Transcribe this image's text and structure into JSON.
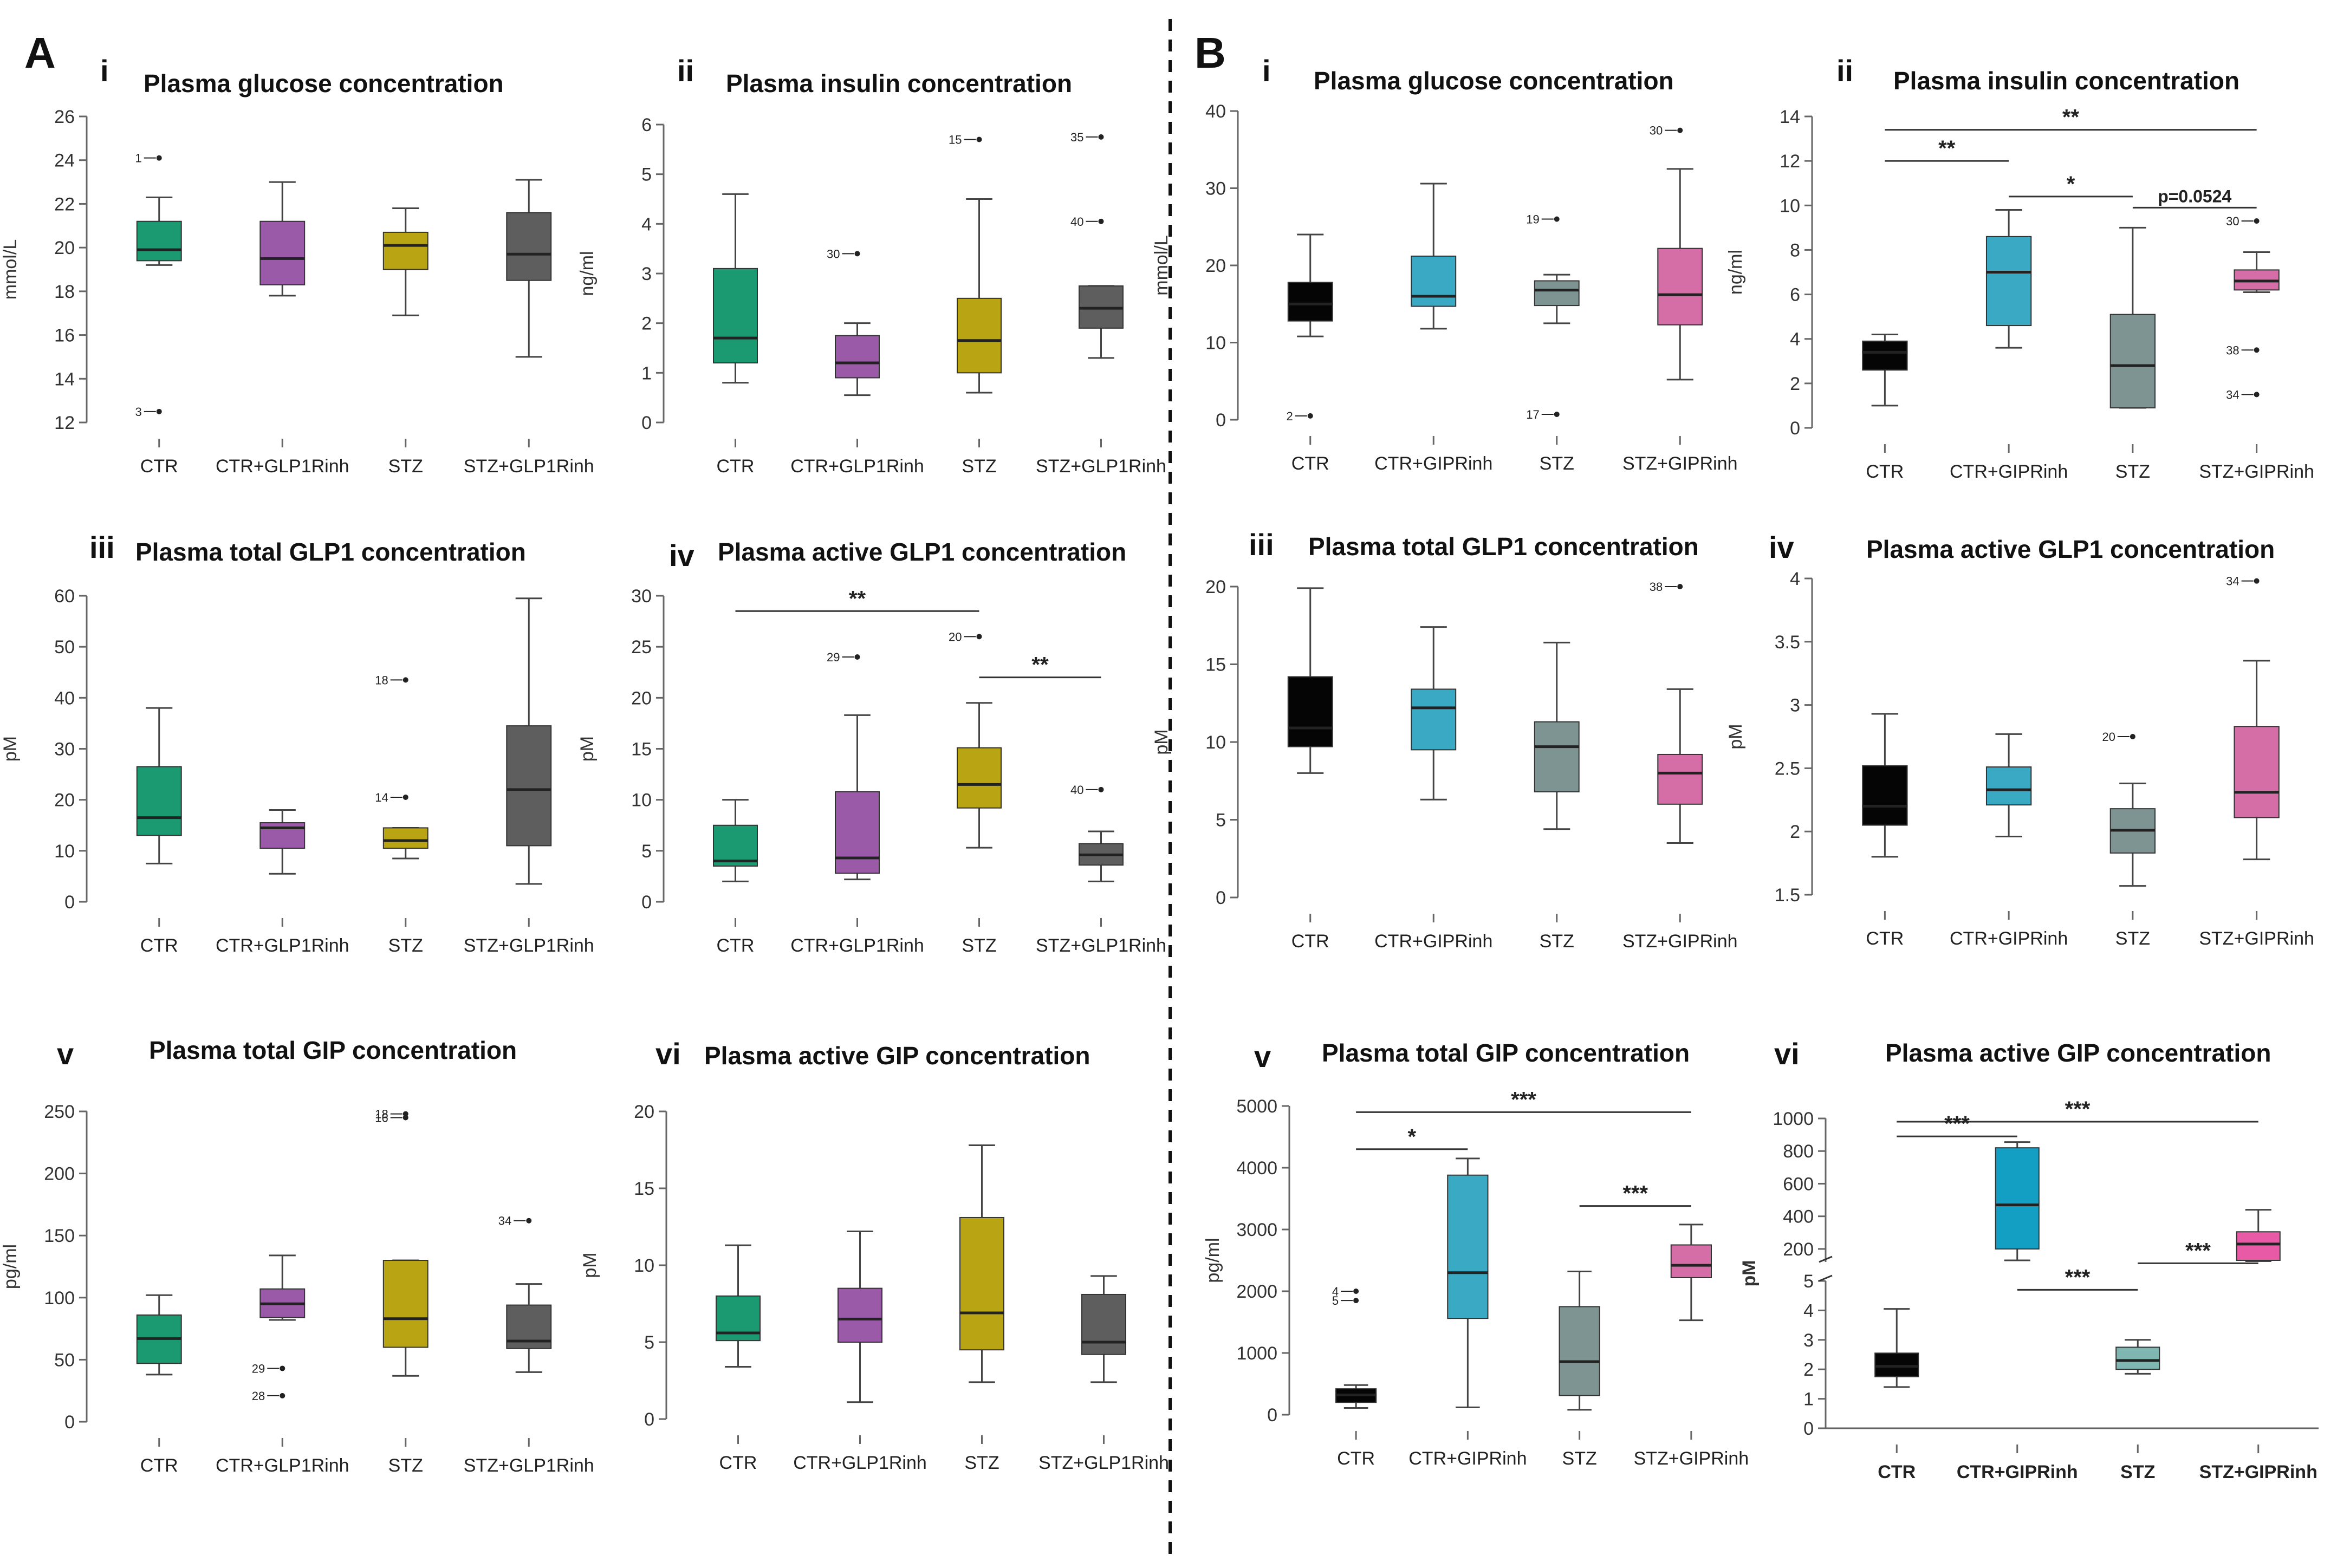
{
  "figure": {
    "panel_A_label": "A",
    "panel_B_label": "B"
  },
  "colors": {
    "A": [
      "#1b9a72",
      "#9a5aa8",
      "#b9a514",
      "#5e5e5e"
    ],
    "B": [
      "#050505",
      "#3aa9c4",
      "#7d9493",
      "#d56ea6"
    ],
    "Bvi": [
      "#050505",
      "#139fc4",
      "#7fb6b2",
      "#e85aa6"
    ]
  },
  "chart_data": [
    {
      "id": "Ai",
      "type": "box",
      "roman": "i",
      "title": "Plasma glucose concentration",
      "ylabel": "mmol/L",
      "ylim": [
        12,
        26
      ],
      "yticks": [
        12,
        14,
        16,
        18,
        20,
        22,
        24,
        26
      ],
      "categories": [
        "CTR",
        "CTR+GLP1Rinh",
        "STZ",
        "STZ+GLP1Rinh"
      ],
      "boxes": [
        {
          "min": 19.2,
          "q1": 19.4,
          "median": 19.9,
          "q3": 21.2,
          "max": 22.3
        },
        {
          "min": 17.8,
          "q1": 18.3,
          "median": 19.5,
          "q3": 21.2,
          "max": 23.0
        },
        {
          "min": 16.9,
          "q1": 19.0,
          "median": 20.1,
          "q3": 20.7,
          "max": 21.8
        },
        {
          "min": 15.0,
          "q1": 18.5,
          "median": 19.7,
          "q3": 21.6,
          "max": 23.1
        }
      ],
      "outliers": [
        {
          "box": 0,
          "y": 24.1,
          "label": "1"
        },
        {
          "box": 0,
          "y": 12.5,
          "label": "3"
        }
      ],
      "significance": []
    },
    {
      "id": "Aii",
      "type": "box",
      "roman": "ii",
      "title": "Plasma insulin concentration",
      "ylabel": "ng/ml",
      "ylim": [
        0,
        6
      ],
      "yticks": [
        0,
        1,
        2,
        3,
        4,
        5,
        6
      ],
      "categories": [
        "CTR",
        "CTR+GLP1Rinh",
        "STZ",
        "STZ+GLP1Rinh"
      ],
      "boxes": [
        {
          "min": 0.8,
          "q1": 1.2,
          "median": 1.7,
          "q3": 3.1,
          "max": 4.6
        },
        {
          "min": 0.55,
          "q1": 0.9,
          "median": 1.2,
          "q3": 1.75,
          "max": 2.0
        },
        {
          "min": 0.6,
          "q1": 1.0,
          "median": 1.65,
          "q3": 2.5,
          "max": 4.5
        },
        {
          "min": 1.3,
          "q1": 1.9,
          "median": 2.3,
          "q3": 2.75,
          "max": 2.75
        }
      ],
      "outliers": [
        {
          "box": 1,
          "y": 3.4,
          "label": "30"
        },
        {
          "box": 2,
          "y": 5.7,
          "label": "15"
        },
        {
          "box": 3,
          "y": 5.75,
          "label": "35"
        },
        {
          "box": 3,
          "y": 4.05,
          "label": "40"
        }
      ],
      "significance": []
    },
    {
      "id": "Aiii",
      "type": "box",
      "roman": "iii",
      "title": "Plasma total GLP1 concentration",
      "ylabel": "pM",
      "ylim": [
        0,
        60
      ],
      "yticks": [
        0,
        10,
        20,
        30,
        40,
        50,
        60
      ],
      "categories": [
        "CTR",
        "CTR+GLP1Rinh",
        "STZ",
        "STZ+GLP1Rinh"
      ],
      "boxes": [
        {
          "min": 7.5,
          "q1": 13.0,
          "median": 16.5,
          "q3": 26.5,
          "max": 38.0
        },
        {
          "min": 5.5,
          "q1": 10.5,
          "median": 14.5,
          "q3": 15.5,
          "max": 18.0
        },
        {
          "min": 8.5,
          "q1": 10.5,
          "median": 12.0,
          "q3": 14.5,
          "max": 14.5
        },
        {
          "min": 3.5,
          "q1": 11.0,
          "median": 22.0,
          "q3": 34.5,
          "max": 59.5
        }
      ],
      "outliers": [
        {
          "box": 2,
          "y": 43.5,
          "label": "18"
        },
        {
          "box": 2,
          "y": 20.5,
          "label": "14"
        }
      ],
      "significance": []
    },
    {
      "id": "Aiv",
      "type": "box",
      "roman": "iv",
      "title": "Plasma active GLP1 concentration",
      "ylabel": "pM",
      "ylim": [
        0,
        30
      ],
      "yticks": [
        0,
        5,
        10,
        15,
        20,
        25,
        30
      ],
      "categories": [
        "CTR",
        "CTR+GLP1Rinh",
        "STZ",
        "STZ+GLP1Rinh"
      ],
      "boxes": [
        {
          "min": 2.0,
          "q1": 3.5,
          "median": 4.0,
          "q3": 7.5,
          "max": 10.0
        },
        {
          "min": 2.2,
          "q1": 2.8,
          "median": 4.3,
          "q3": 10.8,
          "max": 18.3
        },
        {
          "min": 5.3,
          "q1": 9.2,
          "median": 11.5,
          "q3": 15.1,
          "max": 19.5
        },
        {
          "min": 2.0,
          "q1": 3.6,
          "median": 4.6,
          "q3": 5.7,
          "max": 6.9
        }
      ],
      "outliers": [
        {
          "box": 1,
          "y": 24.0,
          "label": "29"
        },
        {
          "box": 2,
          "y": 26.0,
          "label": "20"
        },
        {
          "box": 3,
          "y": 11.0,
          "label": "40"
        }
      ],
      "significance": [
        {
          "from": 0,
          "to": 2,
          "y": 28.5,
          "label": "**"
        },
        {
          "from": 2,
          "to": 3,
          "y": 22.0,
          "label": "**"
        }
      ]
    },
    {
      "id": "Av",
      "type": "box",
      "roman": "v",
      "title": "Plasma total GIP concentration",
      "ylabel": "pg/ml",
      "ylim": [
        0,
        250
      ],
      "yticks": [
        0,
        50,
        100,
        150,
        200,
        250
      ],
      "categories": [
        "CTR",
        "CTR+GLP1Rinh",
        "STZ",
        "STZ+GLP1Rinh"
      ],
      "boxes": [
        {
          "min": 38,
          "q1": 47,
          "median": 67,
          "q3": 86,
          "max": 102
        },
        {
          "min": 82,
          "q1": 84,
          "median": 95,
          "q3": 107,
          "max": 134
        },
        {
          "min": 37,
          "q1": 60,
          "median": 83,
          "q3": 130,
          "max": 130
        },
        {
          "min": 40,
          "q1": 59,
          "median": 65,
          "q3": 94,
          "max": 111
        }
      ],
      "outliers": [
        {
          "box": 1,
          "y": 43,
          "label": "29"
        },
        {
          "box": 1,
          "y": 21,
          "label": "28"
        },
        {
          "box": 2,
          "y": 248,
          "label": "18"
        },
        {
          "box": 2,
          "y": 245,
          "label": "16"
        },
        {
          "box": 3,
          "y": 162,
          "label": "34"
        }
      ],
      "significance": []
    },
    {
      "id": "Avi",
      "type": "box",
      "roman": "vi",
      "title": "Plasma active GIP concentration",
      "ylabel": "pM",
      "ylim": [
        0,
        20
      ],
      "yticks": [
        0,
        5,
        10,
        15,
        20
      ],
      "categories": [
        "CTR",
        "CTR+GLP1Rinh",
        "STZ",
        "STZ+GLP1Rinh"
      ],
      "boxes": [
        {
          "min": 3.4,
          "q1": 5.1,
          "median": 5.6,
          "q3": 8.0,
          "max": 11.3
        },
        {
          "min": 1.1,
          "q1": 5.0,
          "median": 6.5,
          "q3": 8.5,
          "max": 12.2
        },
        {
          "min": 2.4,
          "q1": 4.5,
          "median": 6.9,
          "q3": 13.1,
          "max": 17.8
        },
        {
          "min": 2.4,
          "q1": 4.2,
          "median": 5.0,
          "q3": 8.1,
          "max": 9.3
        }
      ],
      "outliers": [],
      "significance": []
    },
    {
      "id": "Bi",
      "type": "box",
      "roman": "i",
      "title": "Plasma glucose concentration",
      "ylabel": "mmol/L",
      "ylim": [
        0,
        40
      ],
      "yticks": [
        0,
        10,
        20,
        30,
        40
      ],
      "categories": [
        "CTR",
        "CTR+GIPRinh",
        "STZ",
        "STZ+GIPRinh"
      ],
      "boxes": [
        {
          "min": 10.8,
          "q1": 12.8,
          "median": 15.0,
          "q3": 17.8,
          "max": 24.0
        },
        {
          "min": 11.8,
          "q1": 14.7,
          "median": 16.0,
          "q3": 21.2,
          "max": 30.6
        },
        {
          "min": 12.5,
          "q1": 14.8,
          "median": 16.8,
          "q3": 18.0,
          "max": 18.8
        },
        {
          "min": 5.2,
          "q1": 12.3,
          "median": 16.2,
          "q3": 22.2,
          "max": 32.5
        }
      ],
      "outliers": [
        {
          "box": 0,
          "y": 0.5,
          "label": "2"
        },
        {
          "box": 2,
          "y": 26.0,
          "label": "19"
        },
        {
          "box": 2,
          "y": 0.7,
          "label": "17"
        },
        {
          "box": 3,
          "y": 37.5,
          "label": "30"
        }
      ],
      "significance": []
    },
    {
      "id": "Bii",
      "type": "box",
      "roman": "ii",
      "title": "Plasma insulin concentration",
      "ylabel": "ng/ml",
      "ylim": [
        0,
        14
      ],
      "yticks": [
        0,
        2,
        4,
        6,
        8,
        10,
        12,
        14
      ],
      "categories": [
        "CTR",
        "CTR+GIPRinh",
        "STZ",
        "STZ+GIPRinh"
      ],
      "boxes": [
        {
          "min": 1.0,
          "q1": 2.6,
          "median": 3.4,
          "q3": 3.9,
          "max": 4.2
        },
        {
          "min": 3.6,
          "q1": 4.6,
          "median": 7.0,
          "q3": 8.6,
          "max": 9.8
        },
        {
          "min": 0.9,
          "q1": 0.9,
          "median": 2.8,
          "q3": 5.1,
          "max": 9.0
        },
        {
          "min": 6.1,
          "q1": 6.2,
          "median": 6.6,
          "q3": 7.1,
          "max": 7.9
        }
      ],
      "outliers": [
        {
          "box": 3,
          "y": 9.3,
          "label": "30"
        },
        {
          "box": 3,
          "y": 3.5,
          "label": "38"
        },
        {
          "box": 3,
          "y": 1.5,
          "label": "34"
        }
      ],
      "significance": [
        {
          "from": 0,
          "to": 3,
          "y": 13.4,
          "label": "**"
        },
        {
          "from": 0,
          "to": 1,
          "y": 12.0,
          "label": "**"
        },
        {
          "from": 1,
          "to": 2,
          "y": 10.4,
          "label": "*"
        },
        {
          "from": 2,
          "to": 3,
          "y": 9.9,
          "label": "p=0.0524"
        }
      ]
    },
    {
      "id": "Biii",
      "type": "box",
      "roman": "iii",
      "title": "Plasma total GLP1 concentration",
      "ylabel": "pM",
      "ylim": [
        0,
        20
      ],
      "yticks": [
        0,
        5,
        10,
        15,
        20
      ],
      "categories": [
        "CTR",
        "CTR+GIPRinh",
        "STZ",
        "STZ+GIPRinh"
      ],
      "boxes": [
        {
          "min": 8.0,
          "q1": 9.7,
          "median": 10.9,
          "q3": 14.2,
          "max": 19.9
        },
        {
          "min": 6.3,
          "q1": 9.5,
          "median": 12.2,
          "q3": 13.4,
          "max": 17.4
        },
        {
          "min": 4.4,
          "q1": 6.8,
          "median": 9.7,
          "q3": 11.3,
          "max": 16.4
        },
        {
          "min": 3.5,
          "q1": 6.0,
          "median": 8.0,
          "q3": 9.2,
          "max": 13.4
        }
      ],
      "outliers": [
        {
          "box": 3,
          "y": 20.0,
          "label": "38"
        }
      ],
      "significance": []
    },
    {
      "id": "Biv",
      "type": "box",
      "roman": "iv",
      "title": "Plasma active GLP1 concentration",
      "ylabel": "pM",
      "ylim": [
        1.5,
        4.0
      ],
      "yticks": [
        1.5,
        2.0,
        2.5,
        3.0,
        3.5,
        4.0
      ],
      "categories": [
        "CTR",
        "CTR+GIPRinh",
        "STZ",
        "STZ+GIPRinh"
      ],
      "boxes": [
        {
          "min": 1.8,
          "q1": 2.05,
          "median": 2.2,
          "q3": 2.52,
          "max": 2.93
        },
        {
          "min": 1.96,
          "q1": 2.21,
          "median": 2.33,
          "q3": 2.51,
          "max": 2.77
        },
        {
          "min": 1.57,
          "q1": 1.83,
          "median": 2.01,
          "q3": 2.18,
          "max": 2.38
        },
        {
          "min": 1.78,
          "q1": 2.11,
          "median": 2.31,
          "q3": 2.83,
          "max": 3.35
        }
      ],
      "outliers": [
        {
          "box": 2,
          "y": 2.75,
          "label": "20"
        },
        {
          "box": 3,
          "y": 3.98,
          "label": "34"
        }
      ],
      "significance": []
    },
    {
      "id": "Bv",
      "type": "box",
      "roman": "v",
      "title": "Plasma total GIP concentration",
      "ylabel": "pg/ml",
      "ylim": [
        0,
        5000
      ],
      "yticks": [
        0,
        1000,
        2000,
        3000,
        4000,
        5000
      ],
      "categories": [
        "CTR",
        "CTR+GIPRinh",
        "STZ",
        "STZ+GIPRinh"
      ],
      "boxes": [
        {
          "min": 110,
          "q1": 200,
          "median": 320,
          "q3": 420,
          "max": 480
        },
        {
          "min": 120,
          "q1": 1560,
          "median": 2300,
          "q3": 3880,
          "max": 4150
        },
        {
          "min": 80,
          "q1": 310,
          "median": 860,
          "q3": 1750,
          "max": 2320
        },
        {
          "min": 1530,
          "q1": 2220,
          "median": 2420,
          "q3": 2750,
          "max": 3080
        }
      ],
      "outliers": [
        {
          "box": 0,
          "y": 2000,
          "label": "4"
        },
        {
          "box": 0,
          "y": 1850,
          "label": "5"
        }
      ],
      "significance": [
        {
          "from": 0,
          "to": 3,
          "y": 4900,
          "label": "***"
        },
        {
          "from": 0,
          "to": 1,
          "y": 4300,
          "label": "*"
        },
        {
          "from": 2,
          "to": 3,
          "y": 3380,
          "label": "***"
        }
      ]
    },
    {
      "id": "Bvi",
      "type": "broken-box",
      "roman": "vi",
      "title": "Plasma active GIP concentration",
      "ylabel": "pM",
      "upper": {
        "ylim": [
          120,
          1000
        ],
        "yticks": [
          200,
          400,
          600,
          800,
          1000
        ]
      },
      "lower": {
        "ylim": [
          0,
          5
        ],
        "yticks": [
          0,
          1,
          2,
          3,
          4,
          5
        ]
      },
      "categories": [
        "CTR",
        "CTR+GIPRinh",
        "STZ",
        "STZ+GIPRinh"
      ],
      "boxes": [
        {
          "segment": "lower",
          "min": 1.4,
          "q1": 1.75,
          "median": 2.1,
          "q3": 2.55,
          "max": 4.05
        },
        {
          "segment": "upper",
          "min": 130,
          "q1": 200,
          "median": 470,
          "q3": 820,
          "max": 855
        },
        {
          "segment": "lower",
          "min": 1.85,
          "q1": 2.0,
          "median": 2.3,
          "q3": 2.75,
          "max": 3.0
        },
        {
          "segment": "upper",
          "min": 125,
          "q1": 130,
          "median": 230,
          "q3": 305,
          "max": 440
        }
      ],
      "outliers": [],
      "significance": [
        {
          "from": 0,
          "to": 3,
          "segment": "upper",
          "y": 980,
          "label": "***"
        },
        {
          "from": 0,
          "to": 1,
          "segment": "upper",
          "y": 890,
          "label": "***"
        },
        {
          "from": 1,
          "to": 2,
          "segment": "lower",
          "y": 4.7,
          "label": "***"
        },
        {
          "from": 2,
          "to": 3,
          "segment": "lower",
          "y": 5.6,
          "label": "***"
        }
      ]
    }
  ]
}
